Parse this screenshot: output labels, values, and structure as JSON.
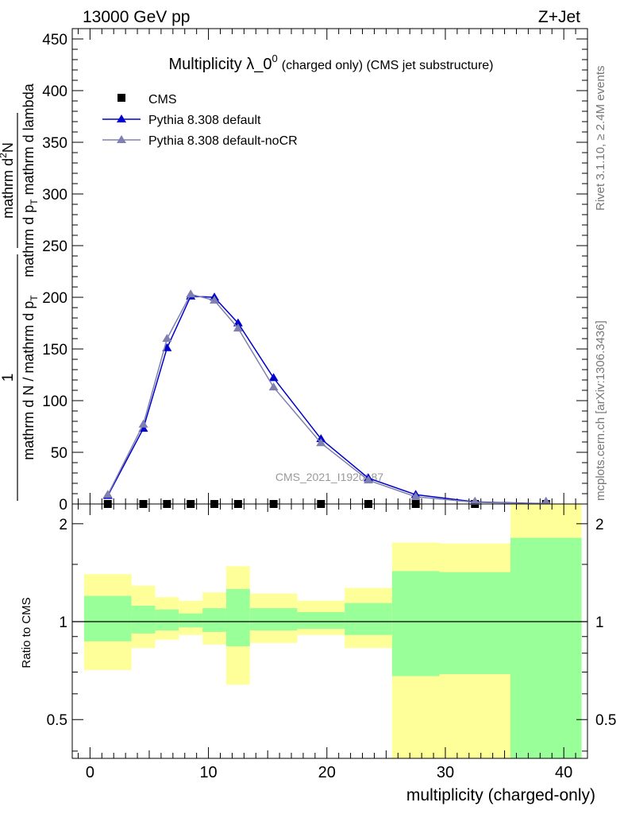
{
  "header": {
    "left": "13000 GeV pp",
    "right": "Z+Jet"
  },
  "side": {
    "rivet": "Rivet 3.1.10, ≥ 2.4M events",
    "mcplots": "mcplots.cern.ch [arXiv:1306.3436]"
  },
  "watermark": "CMS_2021_I1920187",
  "colors": {
    "data": "#000000",
    "default": "#0000cc",
    "nocr": "#8080b0",
    "band_inner": "#99ff99",
    "band_outer": "#ffff99"
  },
  "chart_data": [
    {
      "type": "line",
      "title": "Multiplicity λ_0",
      "title_sup": "0",
      "title_suffix": "(charged only) (CMS jet substructure)",
      "ylabel": {
        "left_num": "1",
        "left_den": "mathrm d N / mathrm d p",
        "left_den_sub": "T",
        "right_num": "mathrm d",
        "right_num_sup": "2",
        "right_num_tail": "N",
        "right_den": "mathrm d p",
        "right_den_sub": "T",
        "right_den_tail": " mathrm d lambda"
      },
      "xlim": [
        -1.5,
        42
      ],
      "ylim": [
        0,
        460
      ],
      "yticks": [
        0,
        50,
        100,
        150,
        200,
        250,
        300,
        350,
        400,
        450
      ],
      "legend_position": "top-left",
      "series": [
        {
          "name": "CMS",
          "marker": "square",
          "x": [
            1.5,
            4.5,
            6.5,
            8.5,
            10.5,
            12.5,
            15.5,
            19.5,
            23.5,
            27.5,
            32.5,
            38.5
          ],
          "y": [
            0,
            0,
            0,
            0,
            0,
            0,
            0,
            0,
            0,
            0,
            0,
            0
          ]
        },
        {
          "name": "Pythia 8.308 default",
          "marker": "triangle",
          "x": [
            1.5,
            4.5,
            6.5,
            8.5,
            10.5,
            12.5,
            15.5,
            19.5,
            23.5,
            27.5,
            32.5,
            38.5
          ],
          "y": [
            8,
            73,
            151,
            201,
            200,
            175,
            122,
            63,
            25,
            9,
            2,
            0.3
          ]
        },
        {
          "name": "Pythia 8.308 default-noCR",
          "marker": "triangle",
          "x": [
            1.5,
            4.5,
            6.5,
            8.5,
            10.5,
            12.5,
            15.5,
            19.5,
            23.5,
            27.5,
            32.5,
            38.5
          ],
          "y": [
            9,
            77,
            160,
            203,
            197,
            170,
            113,
            59,
            23,
            7,
            1.6,
            0.2
          ]
        }
      ]
    },
    {
      "type": "area",
      "title": "",
      "xlabel": "multiplicity (charged-only)",
      "ylabel": "Ratio to CMS",
      "ylog": true,
      "ylim": [
        0.38,
        2.3
      ],
      "yticks": [
        0.5,
        1,
        2
      ],
      "xticks": [
        0,
        10,
        20,
        30,
        40
      ],
      "bins": [
        {
          "lo": -0.5,
          "hi": 3.5,
          "outer": [
            0.71,
            1.4
          ],
          "inner": [
            0.87,
            1.2
          ]
        },
        {
          "lo": 3.5,
          "hi": 5.5,
          "outer": [
            0.83,
            1.29
          ],
          "inner": [
            0.92,
            1.12
          ]
        },
        {
          "lo": 5.5,
          "hi": 7.5,
          "outer": [
            0.88,
            1.19
          ],
          "inner": [
            0.94,
            1.09
          ]
        },
        {
          "lo": 7.5,
          "hi": 9.5,
          "outer": [
            0.91,
            1.16
          ],
          "inner": [
            0.96,
            1.06
          ]
        },
        {
          "lo": 9.5,
          "hi": 11.5,
          "outer": [
            0.85,
            1.23
          ],
          "inner": [
            0.93,
            1.1
          ]
        },
        {
          "lo": 11.5,
          "hi": 13.5,
          "outer": [
            0.64,
            1.48
          ],
          "inner": [
            0.84,
            1.26
          ]
        },
        {
          "lo": 13.5,
          "hi": 17.5,
          "outer": [
            0.86,
            1.22
          ],
          "inner": [
            0.94,
            1.1
          ]
        },
        {
          "lo": 17.5,
          "hi": 21.5,
          "outer": [
            0.91,
            1.16
          ],
          "inner": [
            0.95,
            1.07
          ]
        },
        {
          "lo": 21.5,
          "hi": 25.5,
          "outer": [
            0.83,
            1.27
          ],
          "inner": [
            0.91,
            1.14
          ]
        },
        {
          "lo": 25.5,
          "hi": 29.5,
          "outer": [
            0.35,
            1.75
          ],
          "inner": [
            0.68,
            1.43
          ]
        },
        {
          "lo": 29.5,
          "hi": 35.5,
          "outer": [
            0.35,
            1.74
          ],
          "inner": [
            0.69,
            1.42
          ]
        },
        {
          "lo": 35.5,
          "hi": 41.5,
          "outer": [
            0.35,
            2.5
          ],
          "inner": [
            0.35,
            1.81
          ]
        }
      ],
      "reference_line": 1
    }
  ]
}
